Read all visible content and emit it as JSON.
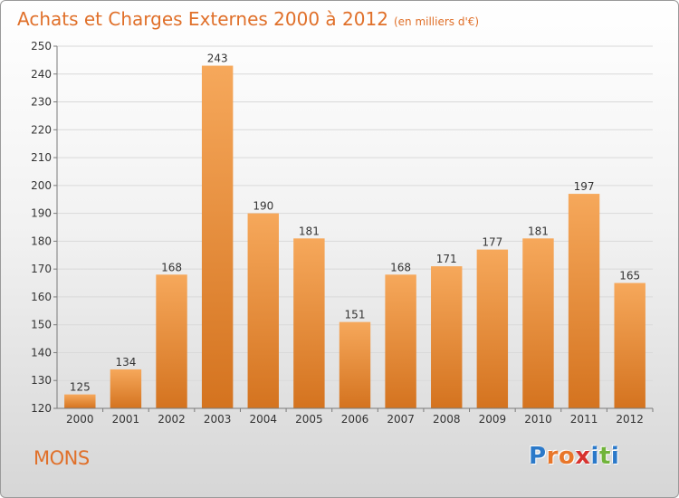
{
  "header": {
    "title": "Achats et Charges Externes 2000 à 2012",
    "unit": "(en milliers d'€)"
  },
  "footer": {
    "location": "MONS",
    "brand_letters": [
      {
        "char": "P",
        "color": "#2b79c9"
      },
      {
        "char": "r",
        "color": "#e8762a"
      },
      {
        "char": "o",
        "color": "#e8762a"
      },
      {
        "char": "x",
        "color": "#d7332f"
      },
      {
        "char": "i",
        "color": "#2b79c9"
      },
      {
        "char": "t",
        "color": "#71b43b"
      },
      {
        "char": "i",
        "color": "#2b79c9"
      }
    ]
  },
  "colors": {
    "accent": "#e0702a",
    "bar_top": "#f6a85b",
    "bar_bottom": "#d4731f",
    "grid": "#d9d9d9",
    "axis": "#7a7a7a",
    "text": "#333333"
  },
  "chart_data": {
    "type": "bar",
    "categories": [
      "2000",
      "2001",
      "2002",
      "2003",
      "2004",
      "2005",
      "2006",
      "2007",
      "2008",
      "2009",
      "2010",
      "2011",
      "2012"
    ],
    "values": [
      125,
      134,
      168,
      243,
      190,
      181,
      151,
      168,
      171,
      177,
      181,
      197,
      165
    ],
    "ylim": [
      120,
      250
    ],
    "yticks": [
      120,
      130,
      140,
      150,
      160,
      170,
      180,
      190,
      200,
      210,
      220,
      230,
      240,
      250
    ],
    "grid": true,
    "legend": "none",
    "xlabel": "",
    "ylabel": ""
  }
}
